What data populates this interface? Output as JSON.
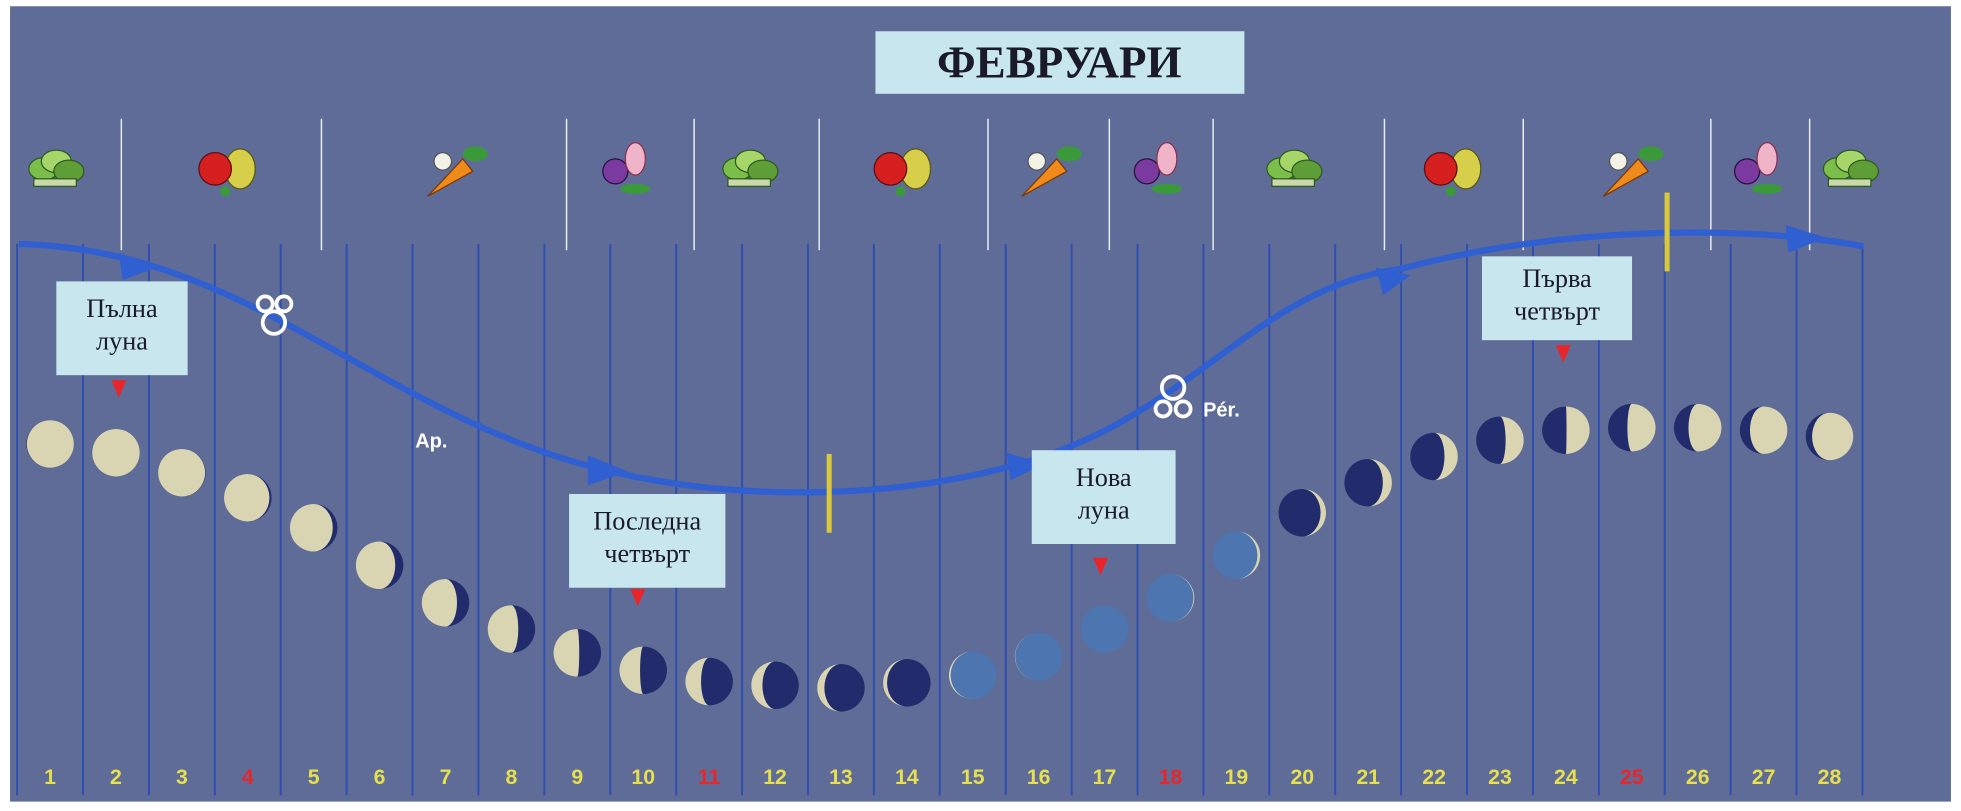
{
  "header": {
    "title": "ФЕВРУАРИ"
  },
  "days": [
    {
      "label": "1",
      "color": "#e6df4e"
    },
    {
      "label": "2",
      "color": "#e6df4e"
    },
    {
      "label": "3",
      "color": "#e6df4e"
    },
    {
      "label": "4",
      "color": "#e8262a"
    },
    {
      "label": "5",
      "color": "#e6df4e"
    },
    {
      "label": "6",
      "color": "#e6df4e"
    },
    {
      "label": "7",
      "color": "#e6df4e"
    },
    {
      "label": "8",
      "color": "#e6df4e"
    },
    {
      "label": "9",
      "color": "#e6df4e"
    },
    {
      "label": "10",
      "color": "#e6df4e"
    },
    {
      "label": "11",
      "color": "#e8262a"
    },
    {
      "label": "12",
      "color": "#e6df4e"
    },
    {
      "label": "13",
      "color": "#e6df4e"
    },
    {
      "label": "14",
      "color": "#e6df4e"
    },
    {
      "label": "15",
      "color": "#e6df4e"
    },
    {
      "label": "16",
      "color": "#e6df4e"
    },
    {
      "label": "17",
      "color": "#e6df4e"
    },
    {
      "label": "18",
      "color": "#e8262a"
    },
    {
      "label": "19",
      "color": "#e6df4e"
    },
    {
      "label": "20",
      "color": "#e6df4e"
    },
    {
      "label": "21",
      "color": "#e6df4e"
    },
    {
      "label": "22",
      "color": "#e6df4e"
    },
    {
      "label": "23",
      "color": "#e6df4e"
    },
    {
      "label": "24",
      "color": "#e6df4e"
    },
    {
      "label": "25",
      "color": "#e8262a"
    },
    {
      "label": "26",
      "color": "#e6df4e"
    },
    {
      "label": "27",
      "color": "#e6df4e"
    },
    {
      "label": "28",
      "color": "#e6df4e"
    }
  ],
  "phases": [
    {
      "lines": [
        "Пълна",
        "луна"
      ]
    },
    {
      "lines": [
        "Последна",
        "четвърт"
      ]
    },
    {
      "lines": [
        "Нова",
        "луна"
      ]
    },
    {
      "lines": [
        "Първа",
        "четвърт"
      ]
    }
  ],
  "markers": {
    "apogee": "Ap.",
    "perigee": "Pér."
  }
}
